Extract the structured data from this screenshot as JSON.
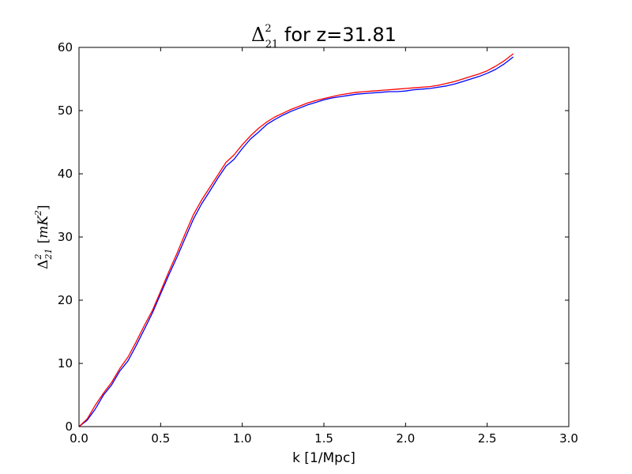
{
  "chart_data": {
    "type": "line",
    "title": {
      "symbol": "Δ",
      "sup": "2",
      "sub": "21",
      "rest": " for z=31.81"
    },
    "xlabel": "k [1/Mpc]",
    "ylabel": {
      "symbol": "Δ",
      "sup": "2",
      "sub": "21",
      "unit_open": "[",
      "unit_var": "mK",
      "unit_sup": "2",
      "unit_close": "]"
    },
    "xlim": [
      0,
      3.0
    ],
    "ylim": [
      0,
      60
    ],
    "x_ticks": [
      "0.0",
      "0.5",
      "1.0",
      "1.5",
      "2.0",
      "2.5",
      "3.0"
    ],
    "y_ticks": [
      "0",
      "10",
      "20",
      "30",
      "40",
      "50",
      "60"
    ],
    "grid": false,
    "legend": "none",
    "series": [
      {
        "color": "#0000ff",
        "points": [
          [
            0.0,
            0.0
          ],
          [
            0.05,
            1.0
          ],
          [
            0.1,
            2.8
          ],
          [
            0.15,
            5.0
          ],
          [
            0.2,
            6.6
          ],
          [
            0.25,
            8.8
          ],
          [
            0.3,
            10.4
          ],
          [
            0.35,
            12.8
          ],
          [
            0.4,
            15.4
          ],
          [
            0.45,
            18.0
          ],
          [
            0.5,
            21.0
          ],
          [
            0.55,
            24.0
          ],
          [
            0.6,
            26.8
          ],
          [
            0.65,
            29.8
          ],
          [
            0.7,
            32.8
          ],
          [
            0.75,
            35.2
          ],
          [
            0.8,
            37.2
          ],
          [
            0.85,
            39.3
          ],
          [
            0.9,
            41.2
          ],
          [
            0.95,
            42.3
          ],
          [
            1.0,
            44.0
          ],
          [
            1.05,
            45.5
          ],
          [
            1.1,
            46.6
          ],
          [
            1.15,
            47.8
          ],
          [
            1.2,
            48.6
          ],
          [
            1.25,
            49.3
          ],
          [
            1.3,
            49.9
          ],
          [
            1.35,
            50.4
          ],
          [
            1.4,
            50.9
          ],
          [
            1.45,
            51.3
          ],
          [
            1.5,
            51.7
          ],
          [
            1.55,
            52.0
          ],
          [
            1.6,
            52.2
          ],
          [
            1.65,
            52.4
          ],
          [
            1.7,
            52.6
          ],
          [
            1.75,
            52.7
          ],
          [
            1.8,
            52.8
          ],
          [
            1.85,
            52.9
          ],
          [
            1.9,
            53.0
          ],
          [
            1.95,
            53.0
          ],
          [
            2.0,
            53.1
          ],
          [
            2.05,
            53.3
          ],
          [
            2.1,
            53.4
          ],
          [
            2.15,
            53.5
          ],
          [
            2.2,
            53.7
          ],
          [
            2.25,
            53.9
          ],
          [
            2.3,
            54.2
          ],
          [
            2.35,
            54.6
          ],
          [
            2.4,
            55.0
          ],
          [
            2.45,
            55.4
          ],
          [
            2.5,
            55.9
          ],
          [
            2.55,
            56.5
          ],
          [
            2.6,
            57.3
          ],
          [
            2.65,
            58.3
          ],
          [
            2.66,
            58.5
          ]
        ]
      },
      {
        "color": "#ff0000",
        "points": [
          [
            0.0,
            0.0
          ],
          [
            0.05,
            1.2
          ],
          [
            0.1,
            3.4
          ],
          [
            0.15,
            5.3
          ],
          [
            0.2,
            7.0
          ],
          [
            0.25,
            9.2
          ],
          [
            0.3,
            11.0
          ],
          [
            0.35,
            13.4
          ],
          [
            0.4,
            16.0
          ],
          [
            0.45,
            18.4
          ],
          [
            0.5,
            21.4
          ],
          [
            0.55,
            24.5
          ],
          [
            0.6,
            27.4
          ],
          [
            0.65,
            30.5
          ],
          [
            0.7,
            33.5
          ],
          [
            0.75,
            35.8
          ],
          [
            0.8,
            37.8
          ],
          [
            0.85,
            39.8
          ],
          [
            0.9,
            41.8
          ],
          [
            0.95,
            43.0
          ],
          [
            1.0,
            44.6
          ],
          [
            1.05,
            46.0
          ],
          [
            1.1,
            47.2
          ],
          [
            1.15,
            48.2
          ],
          [
            1.2,
            49.0
          ],
          [
            1.25,
            49.6
          ],
          [
            1.3,
            50.2
          ],
          [
            1.35,
            50.7
          ],
          [
            1.4,
            51.2
          ],
          [
            1.45,
            51.6
          ],
          [
            1.5,
            51.9
          ],
          [
            1.55,
            52.2
          ],
          [
            1.6,
            52.5
          ],
          [
            1.65,
            52.7
          ],
          [
            1.7,
            52.9
          ],
          [
            1.75,
            53.0
          ],
          [
            1.8,
            53.1
          ],
          [
            1.85,
            53.2
          ],
          [
            1.9,
            53.3
          ],
          [
            1.95,
            53.4
          ],
          [
            2.0,
            53.5
          ],
          [
            2.05,
            53.6
          ],
          [
            2.1,
            53.7
          ],
          [
            2.15,
            53.8
          ],
          [
            2.2,
            54.0
          ],
          [
            2.25,
            54.3
          ],
          [
            2.3,
            54.6
          ],
          [
            2.35,
            55.0
          ],
          [
            2.4,
            55.4
          ],
          [
            2.45,
            55.8
          ],
          [
            2.5,
            56.3
          ],
          [
            2.55,
            57.0
          ],
          [
            2.6,
            57.8
          ],
          [
            2.65,
            58.8
          ],
          [
            2.66,
            59.0
          ]
        ]
      }
    ]
  }
}
